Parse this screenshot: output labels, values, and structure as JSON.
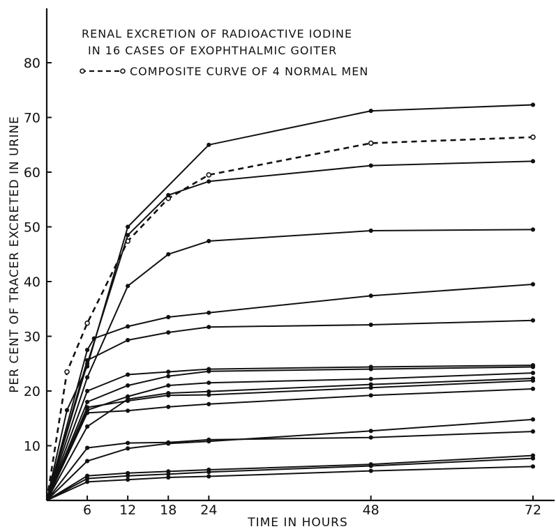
{
  "chart_data": {
    "type": "line",
    "title": "RENAL EXCRETION OF RADIOACTIVE IODINE",
    "subtitle": "IN 16 CASES OF EXOPHTHALMIC GOITER",
    "xlabel": "TIME IN HOURS",
    "ylabel": "PER CENT OF TRACER EXCRETED IN URINE",
    "xlim": [
      0,
      75
    ],
    "ylim": [
      0,
      85
    ],
    "x_ticks": [
      6,
      12,
      18,
      24,
      48,
      72
    ],
    "y_ticks": [
      10,
      20,
      30,
      40,
      50,
      60,
      70,
      80
    ],
    "grid": false,
    "legend_position": "top-center",
    "legend": {
      "label": "COMPOSITE CURVE OF 4 NORMAL MEN",
      "style": "dashed, open circles"
    },
    "series": [
      {
        "name": "COMPOSITE CURVE OF 4 NORMAL MEN",
        "style": "dashed",
        "x": [
          0,
          3,
          6,
          12,
          18,
          24,
          48,
          72
        ],
        "y": [
          0,
          23.5,
          32.4,
          47.4,
          55.2,
          59.5,
          65.3,
          66.4
        ]
      },
      {
        "x": [
          0,
          3,
          6,
          12,
          24,
          48,
          72
        ],
        "y": [
          0,
          16.5,
          24.5,
          50.0,
          65.0,
          71.2,
          72.3
        ]
      },
      {
        "x": [
          0,
          6,
          12,
          18,
          24,
          48,
          72
        ],
        "y": [
          0,
          25.0,
          48.5,
          55.8,
          58.3,
          61.2,
          62.0
        ]
      },
      {
        "x": [
          0,
          6,
          12,
          18,
          24,
          48,
          72
        ],
        "y": [
          0,
          22.5,
          39.2,
          45.0,
          47.4,
          49.3,
          49.5
        ]
      },
      {
        "x": [
          0,
          6,
          7,
          12,
          18,
          24,
          48,
          72
        ],
        "y": [
          0,
          27.5,
          29.6,
          31.8,
          33.5,
          34.3,
          37.4,
          39.5
        ]
      },
      {
        "x": [
          0,
          6,
          12,
          18,
          24,
          48,
          72
        ],
        "y": [
          0,
          25.6,
          29.3,
          30.7,
          31.7,
          32.1,
          32.9
        ]
      },
      {
        "x": [
          0,
          6,
          12,
          18,
          24,
          48,
          72
        ],
        "y": [
          0,
          20.0,
          23.0,
          23.5,
          24.0,
          24.4,
          24.7
        ]
      },
      {
        "x": [
          0,
          6,
          12,
          18,
          24,
          48,
          72
        ],
        "y": [
          0,
          18.0,
          21.0,
          22.7,
          23.6,
          24.0,
          24.4
        ]
      },
      {
        "x": [
          0,
          6,
          12,
          18,
          24,
          48,
          72
        ],
        "y": [
          0,
          16.5,
          19.0,
          21.0,
          21.5,
          22.2,
          23.3
        ]
      },
      {
        "x": [
          0,
          6,
          12,
          18,
          24,
          48,
          72
        ],
        "y": [
          0,
          13.5,
          18.5,
          19.6,
          19.9,
          21.2,
          22.3
        ]
      },
      {
        "x": [
          0,
          6,
          12,
          18,
          24,
          48,
          72
        ],
        "y": [
          0,
          17.0,
          18.2,
          19.2,
          19.3,
          20.6,
          21.9
        ]
      },
      {
        "x": [
          0,
          6,
          12,
          18,
          24,
          48,
          72
        ],
        "y": [
          0,
          16.0,
          16.4,
          17.1,
          17.6,
          19.2,
          20.4
        ]
      },
      {
        "x": [
          0,
          6,
          12,
          18,
          24,
          48,
          72
        ],
        "y": [
          0,
          9.6,
          10.5,
          10.6,
          11.1,
          11.5,
          12.6
        ]
      },
      {
        "x": [
          0,
          6,
          12,
          18,
          24,
          48,
          72
        ],
        "y": [
          0,
          7.2,
          9.5,
          10.4,
          10.8,
          12.7,
          14.8
        ]
      },
      {
        "x": [
          0,
          6,
          12,
          18,
          24,
          48,
          72
        ],
        "y": [
          0,
          4.5,
          5.0,
          5.3,
          5.6,
          6.6,
          8.2
        ]
      },
      {
        "x": [
          0,
          6,
          12,
          18,
          24,
          48,
          72
        ],
        "y": [
          0,
          4.0,
          4.5,
          4.8,
          5.2,
          6.3,
          7.7
        ]
      },
      {
        "x": [
          0,
          6,
          12,
          18,
          24,
          48,
          72
        ],
        "y": [
          0,
          3.4,
          3.8,
          4.2,
          4.4,
          5.4,
          6.2
        ]
      }
    ]
  }
}
